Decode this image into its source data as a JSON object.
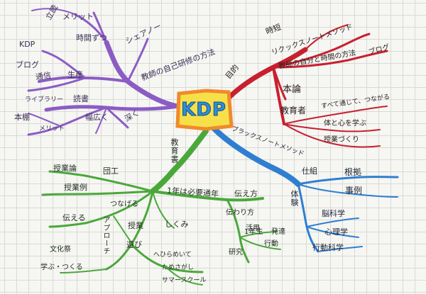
{
  "center": {
    "title": "KDP",
    "colors": {
      "frame": "#f08a2a",
      "fill": "#f6e04a",
      "text": "#2d8fd6"
    }
  },
  "branch_colors": {
    "purple": "#8b5cc4",
    "red": "#c7202e",
    "green": "#4aa83a",
    "blue": "#2f7fd0"
  },
  "purple": {
    "main": "教師の自己研修の方法",
    "sub1": "シェアノー",
    "sub1_items": [
      "時間ずつ",
      "メリット"
    ],
    "top": "立読",
    "sub2": "生産",
    "sub2_items": [
      "KDP",
      "ブログ",
      "通信"
    ],
    "sub3": "読書",
    "sub3_items": [
      "ライブラリー",
      "本棚",
      "メリット"
    ],
    "sub4": "幅広く",
    "sub5": "深く"
  },
  "red": {
    "main": "目的",
    "sub1": "時短",
    "sub1_item": "リクックスノートメソッド",
    "sub2": "教師の自分と時間の方法",
    "sub2_tail": "ブログ",
    "sub3": "本論",
    "sub4": "教育者",
    "sub4_items": [
      "すべて通じて、つながる",
      "体と心を学ぶ",
      "授業づくり"
    ]
  },
  "green": {
    "main": "教育書",
    "sub1": "授業論",
    "sub1_tail": "団工",
    "sub2": "授業例",
    "sub3": "1年は必要通年",
    "sub3_tail": "伝え方",
    "sub3_items": [
      "伝わり方",
      "活用",
      "1年生",
      "研究"
    ],
    "sub3_misc": [
      "発達",
      "行動"
    ],
    "sub4": "つなげる",
    "sub4_items": [
      "伝える",
      "授業"
    ],
    "sub4_tail": "しくみ",
    "sub5": "アプローチ",
    "sub5_items": [
      "文化祭",
      "学ぶ・つくる"
    ],
    "sub6": "遊び",
    "sub6_items": [
      "へひらめいて",
      "ためさがし",
      "サマースクール"
    ]
  },
  "blue": {
    "main": "ブラックスノートメソッド",
    "sub1": "仕組",
    "sub1_items": [
      "根拠",
      "事例"
    ],
    "sub2": "体験",
    "sub3": "脳科学",
    "sub3_items": [
      "心理学",
      "行動科学"
    ]
  }
}
